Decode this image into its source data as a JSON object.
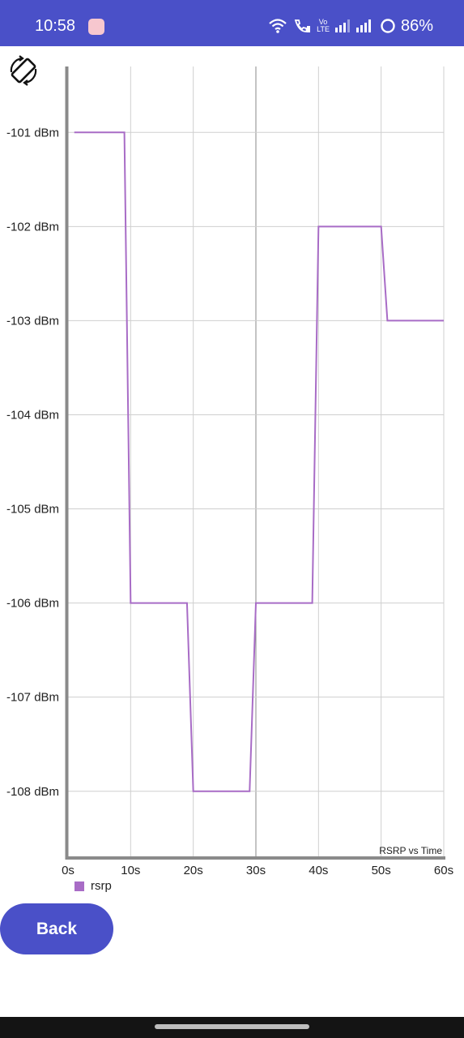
{
  "status_bar": {
    "time": "10:58",
    "volte_top": "Vo",
    "volte_bottom": "LTE",
    "battery_text": "86%",
    "background": "#4a50c8"
  },
  "chart_data": {
    "type": "line",
    "title": "RSRP vs Time",
    "xlabel": "",
    "ylabel": "",
    "x_tick_labels": [
      "0s",
      "10s",
      "20s",
      "30s",
      "40s",
      "50s",
      "60s"
    ],
    "x_ticks": [
      0,
      10,
      20,
      30,
      40,
      50,
      60
    ],
    "y_tick_labels": [
      "-101 dBm",
      "-102 dBm",
      "-103 dBm",
      "-104 dBm",
      "-105 dBm",
      "-106 dBm",
      "-107 dBm",
      "-108 dBm"
    ],
    "y_ticks": [
      -101,
      -102,
      -103,
      -104,
      -105,
      -106,
      -107,
      -108
    ],
    "xlim": [
      0,
      60
    ],
    "ylim": [
      -108.7,
      -100.3
    ],
    "series": [
      {
        "name": "rsrp",
        "color": "#a86cc6",
        "x": [
          1,
          9,
          10,
          19,
          20,
          29,
          30,
          39,
          40,
          50,
          51,
          60
        ],
        "values": [
          -101,
          -101,
          -106,
          -106,
          -108,
          -108,
          -106,
          -106,
          -102,
          -102,
          -103,
          -103
        ]
      }
    ]
  },
  "legend": {
    "label": "rsrp"
  },
  "buttons": {
    "back_label": "Back"
  }
}
